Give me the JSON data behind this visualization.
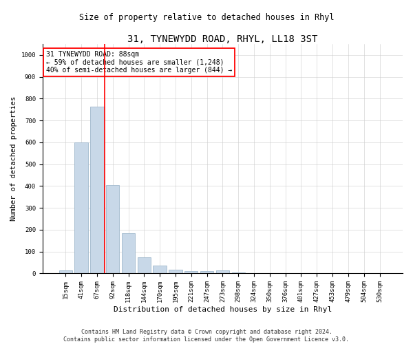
{
  "title": "31, TYNEWYDD ROAD, RHYL, LL18 3ST",
  "subtitle": "Size of property relative to detached houses in Rhyl",
  "xlabel": "Distribution of detached houses by size in Rhyl",
  "ylabel": "Number of detached properties",
  "bar_labels": [
    "15sqm",
    "41sqm",
    "67sqm",
    "92sqm",
    "118sqm",
    "144sqm",
    "170sqm",
    "195sqm",
    "221sqm",
    "247sqm",
    "273sqm",
    "298sqm",
    "324sqm",
    "350sqm",
    "376sqm",
    "401sqm",
    "427sqm",
    "453sqm",
    "479sqm",
    "504sqm",
    "530sqm"
  ],
  "bar_values": [
    15,
    600,
    765,
    405,
    185,
    75,
    35,
    18,
    12,
    10,
    13,
    6,
    3,
    2,
    1,
    1,
    0,
    0,
    0,
    0,
    0
  ],
  "bar_color": "#c8d8e8",
  "bar_edgecolor": "#a0b8cc",
  "vline_color": "red",
  "vline_pos": 2.5,
  "annotation_text": "31 TYNEWYDD ROAD: 88sqm\n← 59% of detached houses are smaller (1,248)\n40% of semi-detached houses are larger (844) →",
  "annotation_box_color": "white",
  "annotation_box_edgecolor": "red",
  "ylim": [
    0,
    1050
  ],
  "yticks": [
    0,
    100,
    200,
    300,
    400,
    500,
    600,
    700,
    800,
    900,
    1000
  ],
  "title_fontsize": 10,
  "subtitle_fontsize": 8.5,
  "ylabel_fontsize": 7.5,
  "xlabel_fontsize": 8,
  "tick_fontsize": 6.5,
  "annot_fontsize": 7,
  "footer": "Contains HM Land Registry data © Crown copyright and database right 2024.\nContains public sector information licensed under the Open Government Licence v3.0.",
  "footer_fontsize": 6
}
